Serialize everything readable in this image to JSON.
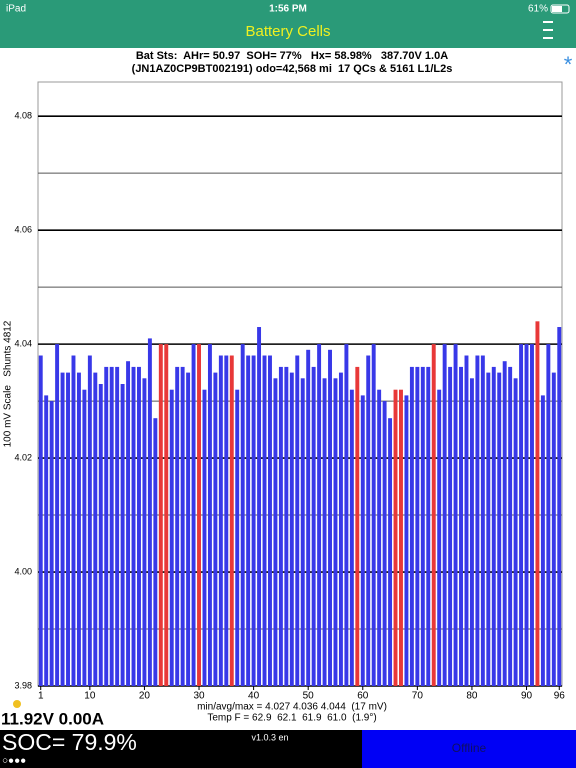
{
  "status_bar": {
    "carrier": "iPad",
    "time": "1:56 PM",
    "battery": "61%"
  },
  "header": {
    "title": "Battery Cells",
    "action": "*"
  },
  "info": {
    "line1": "Bat Sts:  AHr= 50.97  SOH= 77%   Hx= 58.98%   387.70V 1.0A",
    "line2": "(JN1AZ0CP9BT002191) odo=42,568 mi  17 QCs & 5161 L1/L2s"
  },
  "chart_data": {
    "type": "bar",
    "ylabel": "100 mV Scale   Shunts 4812",
    "categories": [
      "1",
      null,
      null,
      null,
      null,
      null,
      null,
      null,
      null,
      "10",
      null,
      null,
      null,
      null,
      null,
      null,
      null,
      null,
      null,
      "20",
      null,
      null,
      null,
      null,
      null,
      null,
      null,
      null,
      null,
      "30",
      null,
      null,
      null,
      null,
      null,
      null,
      null,
      null,
      null,
      "40",
      null,
      null,
      null,
      null,
      null,
      null,
      null,
      null,
      null,
      "50",
      null,
      null,
      null,
      null,
      null,
      null,
      null,
      null,
      null,
      "60",
      null,
      null,
      null,
      null,
      null,
      null,
      null,
      null,
      null,
      "70",
      null,
      null,
      null,
      null,
      null,
      null,
      null,
      null,
      null,
      "80",
      null,
      null,
      null,
      null,
      null,
      null,
      null,
      null,
      null,
      "90",
      null,
      null,
      null,
      null,
      null,
      "96"
    ],
    "values": [
      4.038,
      4.031,
      4.03,
      4.04,
      4.035,
      4.035,
      4.038,
      4.035,
      4.032,
      4.038,
      4.035,
      4.033,
      4.036,
      4.036,
      4.036,
      4.033,
      4.037,
      4.036,
      4.036,
      4.034,
      4.041,
      4.027,
      4.04,
      4.04,
      4.032,
      4.036,
      4.036,
      4.035,
      4.04,
      4.04,
      4.032,
      4.04,
      4.035,
      4.038,
      4.038,
      4.038,
      4.032,
      4.04,
      4.038,
      4.038,
      4.043,
      4.038,
      4.038,
      4.034,
      4.036,
      4.036,
      4.035,
      4.038,
      4.034,
      4.039,
      4.036,
      4.04,
      4.034,
      4.039,
      4.034,
      4.035,
      4.04,
      4.032,
      4.036,
      4.031,
      4.038,
      4.04,
      4.032,
      4.03,
      4.027,
      4.032,
      4.032,
      4.031,
      4.036,
      4.036,
      4.036,
      4.036,
      4.04,
      4.032,
      4.04,
      4.036,
      4.04,
      4.036,
      4.038,
      4.034,
      4.038,
      4.038,
      4.035,
      4.036,
      4.035,
      4.037,
      4.036,
      4.034,
      4.04,
      4.04,
      4.04,
      4.044,
      4.031,
      4.04,
      4.035,
      4.043
    ],
    "colors": [
      "#3838e8",
      "#3838e8",
      "#3838e8",
      "#3838e8",
      "#3838e8",
      "#3838e8",
      "#3838e8",
      "#3838e8",
      "#3838e8",
      "#3838e8",
      "#3838e8",
      "#3838e8",
      "#3838e8",
      "#3838e8",
      "#3838e8",
      "#3838e8",
      "#3838e8",
      "#3838e8",
      "#3838e8",
      "#3838e8",
      "#3838e8",
      "#3838e8",
      "#e83838",
      "#e83838",
      "#3838e8",
      "#3838e8",
      "#3838e8",
      "#3838e8",
      "#3838e8",
      "#e83838",
      "#3838e8",
      "#3838e8",
      "#3838e8",
      "#3838e8",
      "#3838e8",
      "#e83838",
      "#3838e8",
      "#3838e8",
      "#3838e8",
      "#3838e8",
      "#3838e8",
      "#3838e8",
      "#3838e8",
      "#3838e8",
      "#3838e8",
      "#3838e8",
      "#3838e8",
      "#3838e8",
      "#3838e8",
      "#3838e8",
      "#3838e8",
      "#3838e8",
      "#3838e8",
      "#3838e8",
      "#3838e8",
      "#3838e8",
      "#3838e8",
      "#3838e8",
      "#e83838",
      "#3838e8",
      "#3838e8",
      "#3838e8",
      "#3838e8",
      "#3838e8",
      "#3838e8",
      "#e83838",
      "#e83838",
      "#3838e8",
      "#3838e8",
      "#3838e8",
      "#3838e8",
      "#3838e8",
      "#e83838",
      "#3838e8",
      "#3838e8",
      "#3838e8",
      "#3838e8",
      "#3838e8",
      "#3838e8",
      "#3838e8",
      "#3838e8",
      "#3838e8",
      "#3838e8",
      "#3838e8",
      "#3838e8",
      "#3838e8",
      "#3838e8",
      "#3838e8",
      "#3838e8",
      "#3838e8",
      "#3838e8",
      "#e83838",
      "#3838e8",
      "#3838e8",
      "#3838e8",
      "#3838e8"
    ],
    "ylim": [
      3.98,
      4.086
    ],
    "yticks": [
      3.98,
      {
        "value": 4,
        "label": "4.00"
      },
      4.02,
      4.04,
      4.06,
      4.08
    ],
    "yminorticks": [
      3.99,
      4.01,
      4.03,
      4.05,
      4.07
    ],
    "grid": true
  },
  "stats": {
    "minavgmax": "min/avg/max = 4.027 4.036 4.044  (17 mV)",
    "temp": "Temp F = 62.9  62.1  61.9  61.0  (1.9°)"
  },
  "footer": {
    "pack": "11.92V 0.00A",
    "soc": "SOC= 79.9%",
    "dots": "○●●●",
    "version": "v1.0.3 en",
    "button": "Offline"
  }
}
